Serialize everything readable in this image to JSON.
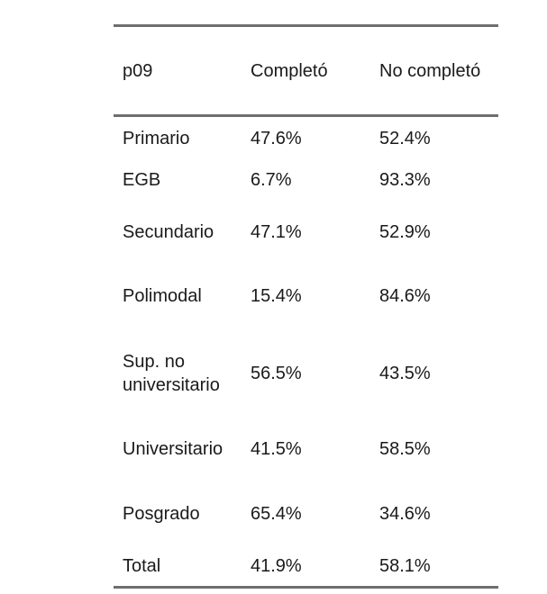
{
  "table": {
    "headers": [
      "p09",
      "Completó",
      "No completó"
    ],
    "rows": [
      {
        "label": "Primario",
        "completo": "47.6%",
        "no_completo": "52.4%"
      },
      {
        "label": "EGB",
        "completo": "6.7%",
        "no_completo": "93.3%"
      },
      {
        "label": "Secundario",
        "completo": "47.1%",
        "no_completo": "52.9%"
      },
      {
        "label": "Polimodal",
        "completo": "15.4%",
        "no_completo": "84.6%"
      },
      {
        "label": "Sup. no universitario",
        "completo": "56.5%",
        "no_completo": "43.5%"
      },
      {
        "label": "Universitario",
        "completo": "41.5%",
        "no_completo": "58.5%"
      },
      {
        "label": "Posgrado",
        "completo": "65.4%",
        "no_completo": "34.6%"
      },
      {
        "label": "Total",
        "completo": "41.9%",
        "no_completo": "58.1%"
      }
    ]
  },
  "colors": {
    "rule": "#6e6e6e",
    "text": "#1a1a1a",
    "background": "#ffffff"
  }
}
